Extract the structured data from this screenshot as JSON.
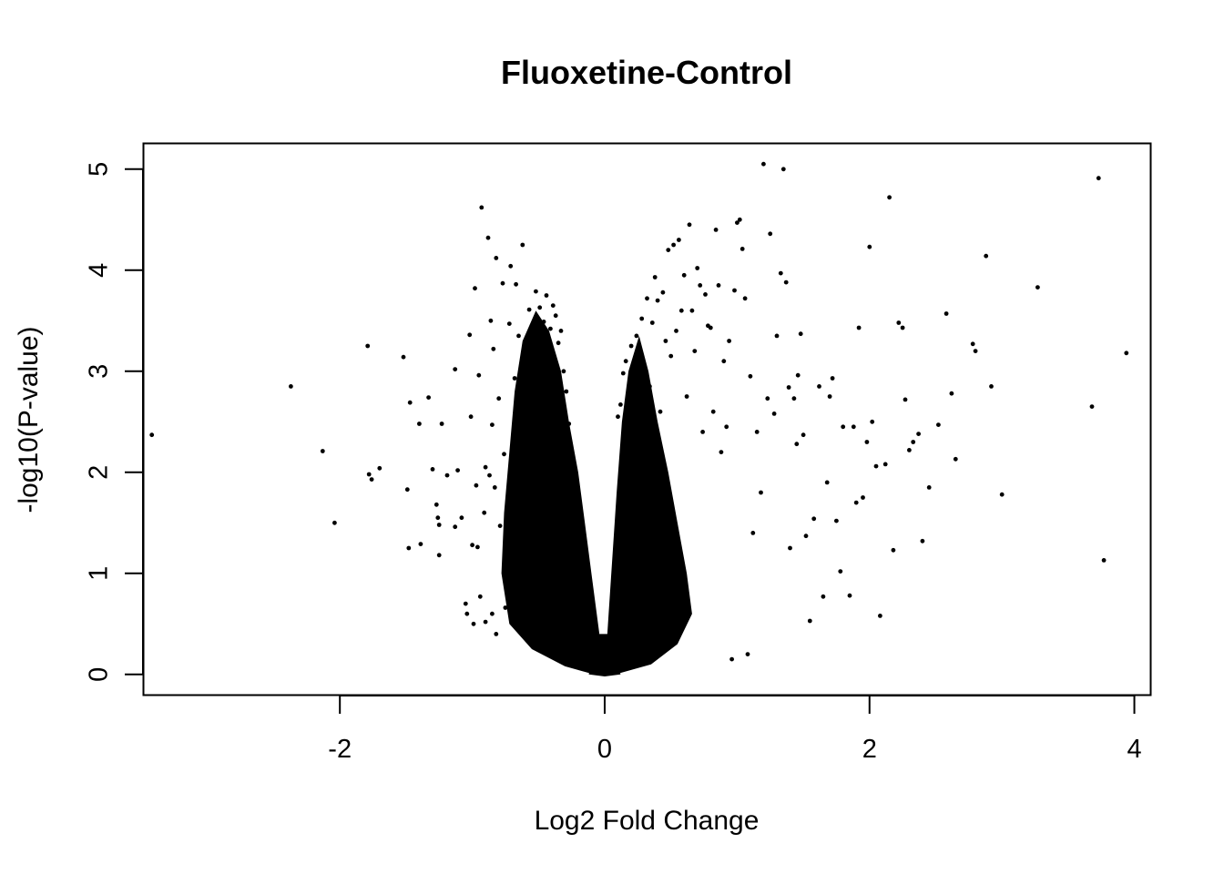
{
  "chart_data": {
    "type": "scatter",
    "title": "Fluoxetine-Control",
    "xlabel": "Log2 Fold Change",
    "ylabel": "-log10(P-value)",
    "xlim": [
      -3.48,
      4.12
    ],
    "ylim": [
      -0.2,
      5.25
    ],
    "x_ticks": [
      -2,
      0,
      2,
      4
    ],
    "y_ticks": [
      0,
      1,
      2,
      3,
      4,
      5
    ],
    "x_tick_labels": [
      "-2",
      "0",
      "2",
      "4"
    ],
    "y_tick_labels": [
      "0",
      "1",
      "2",
      "3",
      "4",
      "5"
    ],
    "grid": false,
    "legend": "none",
    "point_color": "#000000",
    "series": [
      {
        "points": [
          [
            -3.42,
            2.37
          ],
          [
            -2.37,
            2.85
          ],
          [
            -2.13,
            2.21
          ],
          [
            -2.04,
            1.5
          ],
          [
            -1.79,
            3.25
          ],
          [
            -1.78,
            1.98
          ],
          [
            -1.76,
            1.93
          ],
          [
            -1.7,
            2.04
          ],
          [
            -1.52,
            3.14
          ],
          [
            -1.49,
            1.83
          ],
          [
            -1.48,
            1.25
          ],
          [
            -1.47,
            2.69
          ],
          [
            -1.4,
            2.48
          ],
          [
            -1.39,
            1.29
          ],
          [
            -1.33,
            2.74
          ],
          [
            -1.3,
            2.03
          ],
          [
            -1.27,
            1.68
          ],
          [
            -1.26,
            1.55
          ],
          [
            -1.25,
            1.48
          ],
          [
            -1.25,
            1.18
          ],
          [
            -1.23,
            2.48
          ],
          [
            -1.19,
            1.97
          ],
          [
            -1.13,
            3.02
          ],
          [
            -1.13,
            1.46
          ],
          [
            -1.11,
            2.02
          ],
          [
            -1.08,
            1.55
          ],
          [
            -1.05,
            0.7
          ],
          [
            -1.04,
            0.6
          ],
          [
            -1.02,
            3.36
          ],
          [
            -1.01,
            2.55
          ],
          [
            -1.0,
            1.28
          ],
          [
            -0.99,
            0.5
          ],
          [
            -0.98,
            3.82
          ],
          [
            -0.97,
            1.87
          ],
          [
            -0.96,
            1.26
          ],
          [
            -0.95,
            2.96
          ],
          [
            -0.94,
            0.77
          ],
          [
            -0.93,
            4.62
          ],
          [
            -0.91,
            1.6
          ],
          [
            -0.9,
            2.05
          ],
          [
            -0.9,
            0.52
          ],
          [
            -0.88,
            4.32
          ],
          [
            -0.87,
            1.97
          ],
          [
            -0.86,
            3.5
          ],
          [
            -0.85,
            2.47
          ],
          [
            -0.85,
            0.6
          ],
          [
            -0.84,
            3.22
          ],
          [
            -0.83,
            1.85
          ],
          [
            -0.82,
            4.12
          ],
          [
            -0.82,
            0.4
          ],
          [
            -0.8,
            2.73
          ],
          [
            -0.79,
            1.47
          ],
          [
            -0.77,
            3.87
          ],
          [
            -0.76,
            2.18
          ],
          [
            -0.75,
            0.66
          ],
          [
            -0.74,
            1.13
          ],
          [
            -0.72,
            3.47
          ],
          [
            -0.71,
            4.04
          ],
          [
            -0.7,
            1.96
          ],
          [
            -0.68,
            2.93
          ],
          [
            -0.67,
            3.86
          ],
          [
            -0.66,
            0.8
          ],
          [
            -0.65,
            3.35
          ],
          [
            -0.64,
            1.78
          ],
          [
            -0.63,
            3.06
          ],
          [
            -0.62,
            4.25
          ],
          [
            -0.6,
            2.44
          ],
          [
            -0.58,
            1.36
          ],
          [
            -0.57,
            3.61
          ],
          [
            -0.56,
            2.76
          ],
          [
            -0.55,
            3.43
          ],
          [
            -0.54,
            1.02
          ],
          [
            -0.52,
            3.79
          ],
          [
            -0.51,
            3.2
          ],
          [
            -0.5,
            2.23
          ],
          [
            -0.49,
            3.63
          ],
          [
            -0.48,
            2.97
          ],
          [
            -0.47,
            1.62
          ],
          [
            -0.46,
            3.49
          ],
          [
            -0.45,
            2.57
          ],
          [
            -0.44,
            3.75
          ],
          [
            -0.43,
            3.05
          ],
          [
            -0.42,
            0.7
          ],
          [
            -0.41,
            3.42
          ],
          [
            -0.4,
            2.36
          ],
          [
            -0.39,
            3.65
          ],
          [
            -0.38,
            2.9
          ],
          [
            -0.37,
            3.55
          ],
          [
            -0.36,
            1.9
          ],
          [
            -0.35,
            3.28
          ],
          [
            -0.34,
            2.7
          ],
          [
            -0.33,
            3.4
          ],
          [
            -0.32,
            2.61
          ],
          [
            -0.31,
            3.0
          ],
          [
            -0.3,
            2.3
          ],
          [
            -0.29,
            2.8
          ],
          [
            -0.28,
            1.85
          ],
          [
            -0.27,
            2.48
          ],
          [
            -0.26,
            1.6
          ],
          [
            -0.25,
            2.2
          ],
          [
            -0.24,
            2.05
          ],
          [
            -0.22,
            1.6
          ],
          [
            -0.2,
            1.38
          ],
          [
            0.1,
            2.55
          ],
          [
            0.12,
            2.67
          ],
          [
            0.14,
            2.98
          ],
          [
            0.16,
            3.1
          ],
          [
            0.18,
            2.8
          ],
          [
            0.2,
            3.25
          ],
          [
            0.22,
            2.42
          ],
          [
            0.24,
            3.35
          ],
          [
            0.26,
            2.9
          ],
          [
            0.28,
            3.52
          ],
          [
            0.3,
            3.0
          ],
          [
            0.32,
            3.72
          ],
          [
            0.34,
            2.85
          ],
          [
            0.36,
            3.48
          ],
          [
            0.38,
            3.93
          ],
          [
            0.4,
            3.7
          ],
          [
            0.42,
            2.6
          ],
          [
            0.44,
            3.78
          ],
          [
            0.46,
            3.3
          ],
          [
            0.48,
            4.2
          ],
          [
            0.5,
            3.15
          ],
          [
            0.52,
            4.25
          ],
          [
            0.54,
            3.4
          ],
          [
            0.56,
            4.3
          ],
          [
            0.58,
            3.6
          ],
          [
            0.6,
            3.95
          ],
          [
            0.62,
            2.75
          ],
          [
            0.64,
            4.45
          ],
          [
            0.66,
            3.6
          ],
          [
            0.68,
            3.2
          ],
          [
            0.7,
            4.02
          ],
          [
            0.72,
            3.85
          ],
          [
            0.74,
            2.4
          ],
          [
            0.76,
            3.76
          ],
          [
            0.78,
            3.45
          ],
          [
            0.8,
            3.43
          ],
          [
            0.82,
            2.6
          ],
          [
            0.84,
            4.4
          ],
          [
            0.86,
            3.85
          ],
          [
            0.88,
            2.2
          ],
          [
            0.9,
            3.1
          ],
          [
            0.92,
            2.45
          ],
          [
            0.94,
            3.3
          ],
          [
            0.96,
            0.15
          ],
          [
            0.98,
            3.8
          ],
          [
            1.0,
            4.47
          ],
          [
            1.02,
            4.5
          ],
          [
            1.04,
            4.21
          ],
          [
            1.06,
            3.72
          ],
          [
            1.08,
            0.2
          ],
          [
            1.1,
            2.95
          ],
          [
            1.12,
            1.4
          ],
          [
            1.15,
            2.4
          ],
          [
            1.18,
            1.8
          ],
          [
            1.2,
            5.05
          ],
          [
            1.23,
            2.73
          ],
          [
            1.25,
            4.36
          ],
          [
            1.28,
            2.58
          ],
          [
            1.3,
            3.35
          ],
          [
            1.33,
            3.97
          ],
          [
            1.35,
            5.0
          ],
          [
            1.37,
            3.88
          ],
          [
            1.39,
            2.84
          ],
          [
            1.4,
            1.25
          ],
          [
            1.43,
            2.73
          ],
          [
            1.45,
            2.28
          ],
          [
            1.46,
            2.96
          ],
          [
            1.48,
            3.37
          ],
          [
            1.5,
            2.37
          ],
          [
            1.52,
            1.37
          ],
          [
            1.55,
            0.53
          ],
          [
            1.58,
            1.54
          ],
          [
            1.62,
            2.85
          ],
          [
            1.65,
            0.77
          ],
          [
            1.68,
            1.9
          ],
          [
            1.7,
            2.75
          ],
          [
            1.72,
            2.93
          ],
          [
            1.75,
            1.52
          ],
          [
            1.78,
            1.02
          ],
          [
            1.8,
            2.45
          ],
          [
            1.85,
            0.78
          ],
          [
            1.88,
            2.45
          ],
          [
            1.9,
            1.7
          ],
          [
            1.92,
            3.43
          ],
          [
            1.95,
            1.75
          ],
          [
            1.98,
            2.3
          ],
          [
            2.0,
            4.23
          ],
          [
            2.02,
            2.5
          ],
          [
            2.05,
            2.06
          ],
          [
            2.08,
            0.58
          ],
          [
            2.12,
            2.08
          ],
          [
            2.15,
            4.72
          ],
          [
            2.18,
            1.23
          ],
          [
            2.22,
            3.48
          ],
          [
            2.25,
            3.43
          ],
          [
            2.27,
            2.72
          ],
          [
            2.3,
            2.22
          ],
          [
            2.33,
            2.3
          ],
          [
            2.37,
            2.38
          ],
          [
            2.4,
            1.32
          ],
          [
            2.45,
            1.85
          ],
          [
            2.52,
            2.47
          ],
          [
            2.58,
            3.57
          ],
          [
            2.62,
            2.78
          ],
          [
            2.65,
            2.13
          ],
          [
            2.78,
            3.27
          ],
          [
            2.8,
            3.2
          ],
          [
            2.88,
            4.14
          ],
          [
            2.92,
            2.85
          ],
          [
            3.0,
            1.78
          ],
          [
            3.27,
            3.83
          ],
          [
            3.68,
            2.65
          ],
          [
            3.73,
            4.91
          ],
          [
            3.77,
            1.13
          ],
          [
            3.94,
            3.18
          ]
        ]
      }
    ]
  }
}
